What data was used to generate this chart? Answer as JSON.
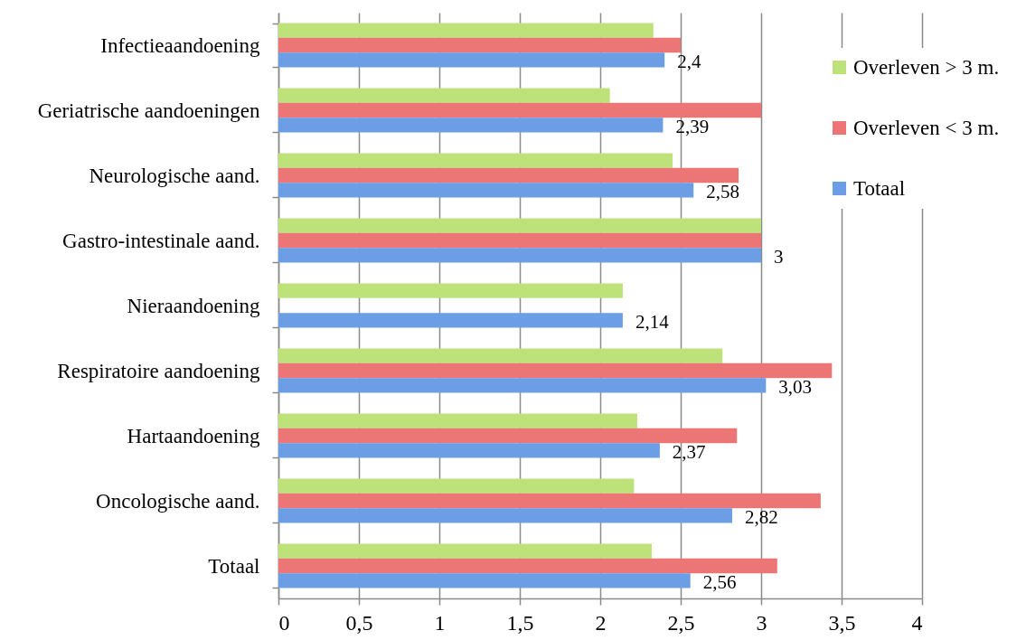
{
  "chart_data": {
    "type": "bar",
    "orientation": "horizontal",
    "categories": [
      "Infectieaandoening",
      "Geriatrische aandoeningen",
      "Neurologische aand.",
      "Gastro-intestinale aand.",
      "Nieraandoening",
      "Respiratoire aandoening",
      "Hartaandoening",
      "Oncologische aand.",
      "Totaal"
    ],
    "series": [
      {
        "name": "Overleven > 3 m.",
        "color": "#bde27a",
        "values": [
          2.33,
          2.06,
          2.45,
          3,
          2.14,
          2.76,
          2.23,
          2.21,
          2.32
        ]
      },
      {
        "name": "Overleven < 3 m.",
        "color": "#ec7676",
        "values": [
          2.5,
          3,
          2.86,
          3,
          null,
          3.44,
          2.85,
          3.37,
          3.1
        ]
      },
      {
        "name": "Totaal",
        "color": "#6c9ee6",
        "values": [
          2.4,
          2.39,
          2.58,
          3,
          2.14,
          3.03,
          2.37,
          2.82,
          2.56
        ],
        "value_labels": [
          "2,4",
          "2,39",
          "2,58",
          "3",
          "2,14",
          "3,03",
          "2,37",
          "2,82",
          "2,56"
        ]
      }
    ],
    "xlim": [
      0,
      4
    ],
    "xticks": [
      0,
      {
        "value": 0.5,
        "label": "0,5"
      },
      1,
      {
        "value": 1.5,
        "label": "1,5"
      },
      2,
      {
        "value": 2.5,
        "label": "2,5"
      },
      3,
      {
        "value": 3.5,
        "label": "3,5"
      },
      4
    ],
    "grid": "x",
    "legend": "top right"
  }
}
